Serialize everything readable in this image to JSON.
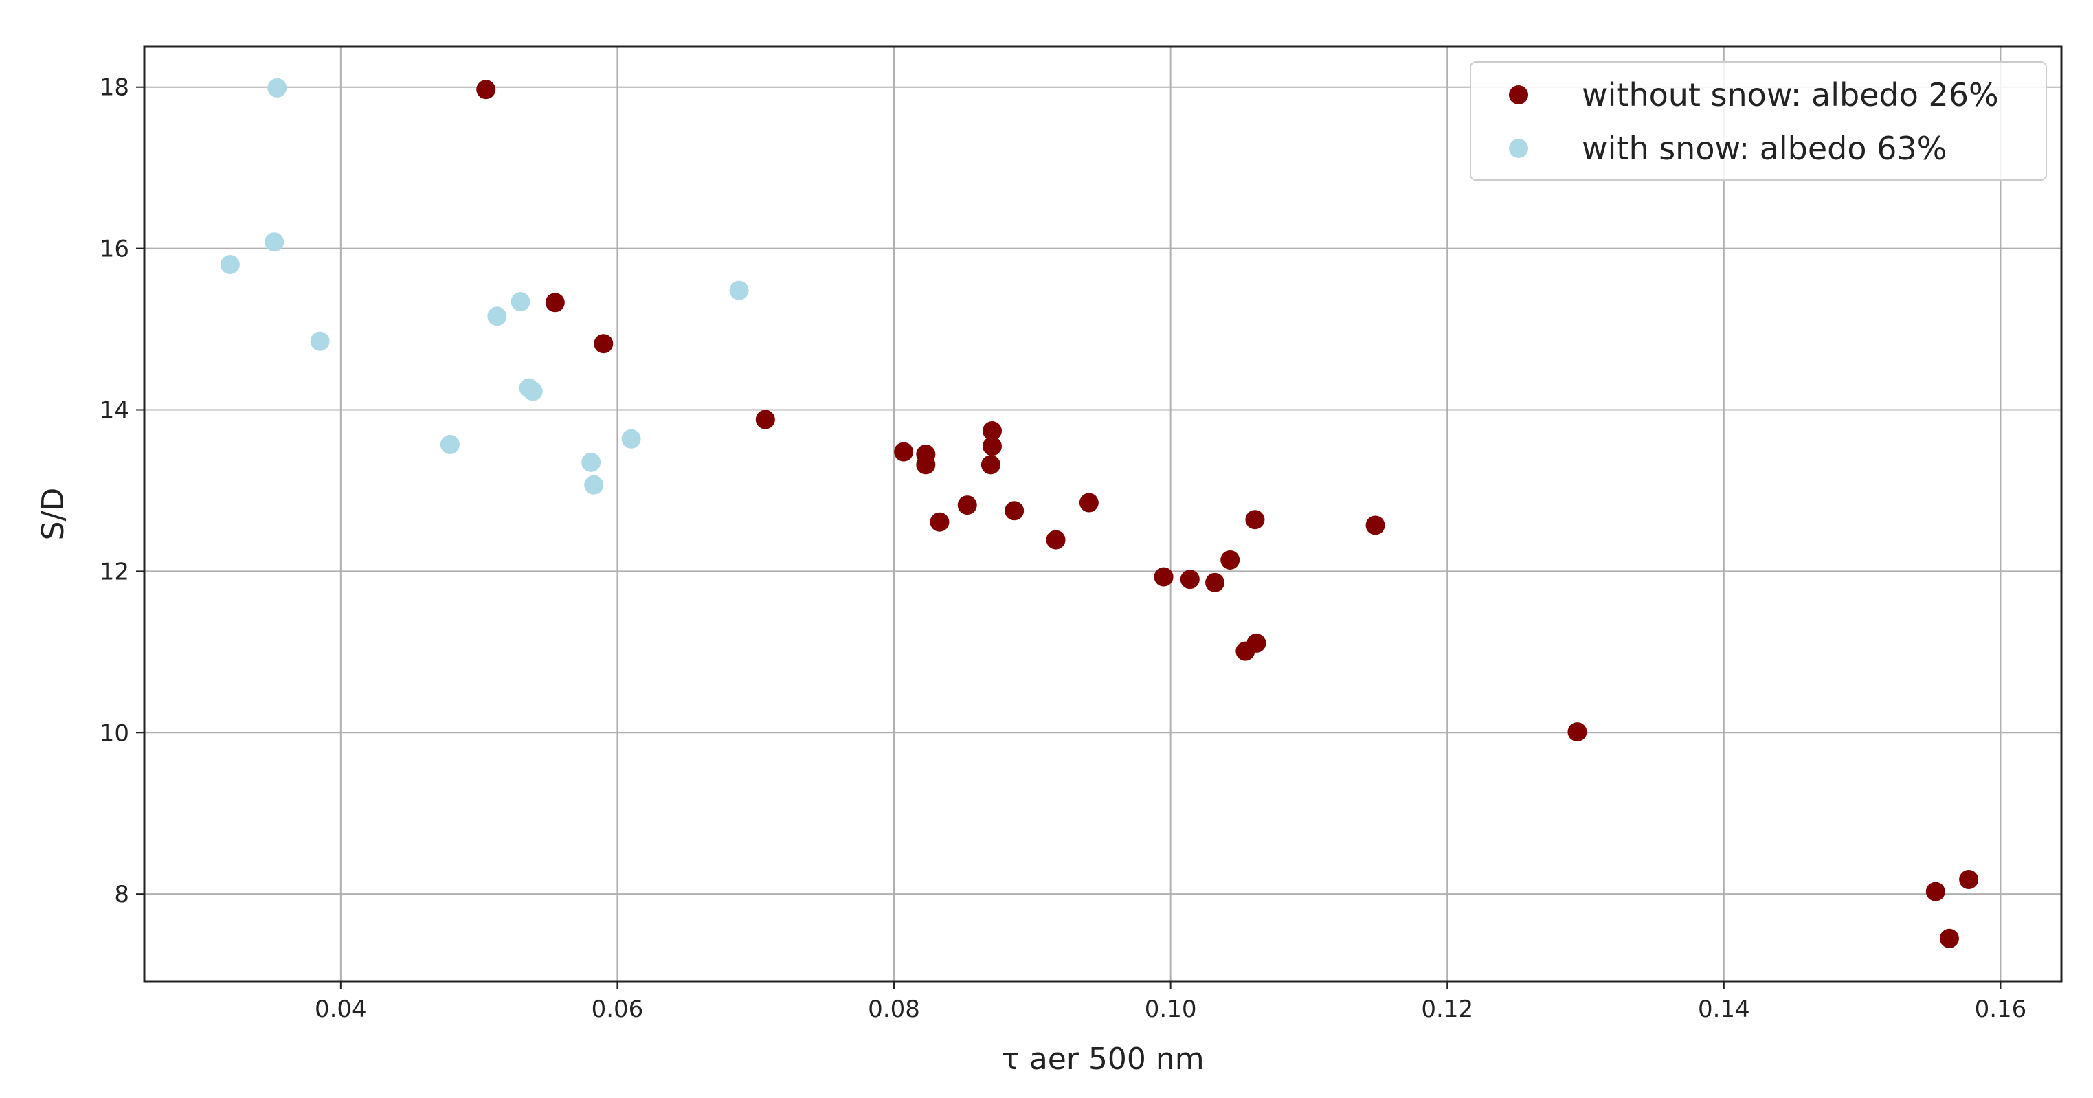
{
  "chart_data": {
    "type": "scatter",
    "title": "",
    "xlabel": "τ aer 500 nm",
    "ylabel": "S/D",
    "xlim": [
      0.0258,
      0.1644
    ],
    "ylim": [
      6.92,
      18.5
    ],
    "xticks": [
      0.04,
      0.06,
      0.08,
      0.1,
      0.12,
      0.14,
      0.16
    ],
    "xtick_labels": [
      "0.04",
      "0.06",
      "0.08",
      "0.10",
      "0.12",
      "0.14",
      "0.16"
    ],
    "yticks": [
      8,
      10,
      12,
      14,
      16,
      18
    ],
    "ytick_labels": [
      "8",
      "10",
      "12",
      "14",
      "16",
      "18"
    ],
    "grid": true,
    "legend_position": "top-right",
    "series": [
      {
        "name": "without snow: albedo 26%",
        "color": "#800000",
        "points": [
          [
            0.0505,
            17.97
          ],
          [
            0.0555,
            15.33
          ],
          [
            0.059,
            14.82
          ],
          [
            0.0707,
            13.88
          ],
          [
            0.0807,
            13.48
          ],
          [
            0.0823,
            13.45
          ],
          [
            0.0823,
            13.32
          ],
          [
            0.0833,
            12.61
          ],
          [
            0.0853,
            12.82
          ],
          [
            0.0871,
            13.74
          ],
          [
            0.0871,
            13.55
          ],
          [
            0.087,
            13.32
          ],
          [
            0.0887,
            12.75
          ],
          [
            0.0917,
            12.39
          ],
          [
            0.0941,
            12.85
          ],
          [
            0.0995,
            11.93
          ],
          [
            0.1014,
            11.9
          ],
          [
            0.1032,
            11.86
          ],
          [
            0.1043,
            12.14
          ],
          [
            0.1061,
            12.64
          ],
          [
            0.1054,
            11.01
          ],
          [
            0.1062,
            11.11
          ],
          [
            0.1148,
            12.57
          ],
          [
            0.1294,
            10.01
          ],
          [
            0.1553,
            8.03
          ],
          [
            0.1577,
            8.18
          ],
          [
            0.1563,
            7.45
          ]
        ]
      },
      {
        "name": "with snow: albedo 63%",
        "color": "#add8e6",
        "points": [
          [
            0.0354,
            17.99
          ],
          [
            0.0352,
            16.08
          ],
          [
            0.032,
            15.8
          ],
          [
            0.0385,
            14.85
          ],
          [
            0.0513,
            15.16
          ],
          [
            0.053,
            15.34
          ],
          [
            0.0688,
            15.48
          ],
          [
            0.0536,
            14.27
          ],
          [
            0.0539,
            14.23
          ],
          [
            0.0479,
            13.57
          ],
          [
            0.0581,
            13.35
          ],
          [
            0.0583,
            13.07
          ],
          [
            0.061,
            13.64
          ]
        ]
      }
    ]
  }
}
